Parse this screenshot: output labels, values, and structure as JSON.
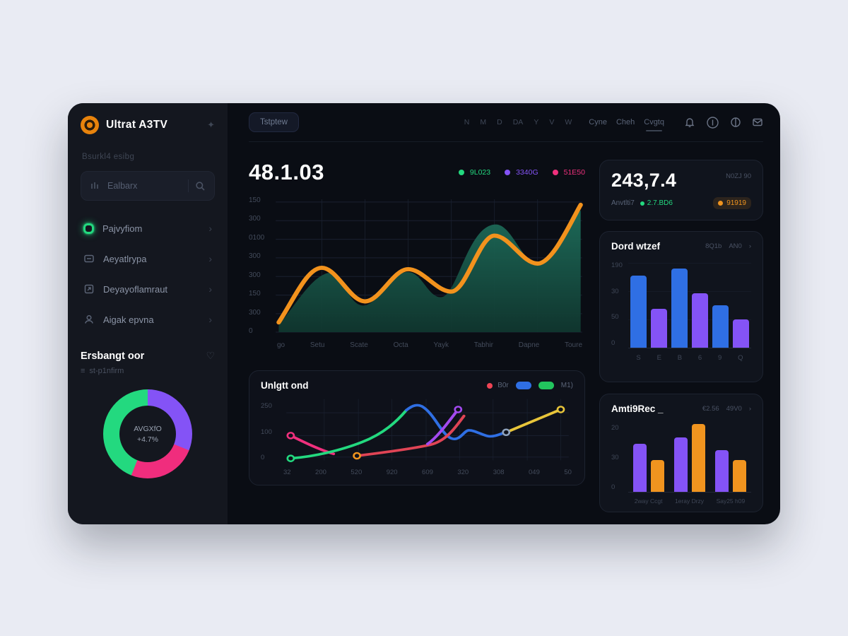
{
  "icons": {
    "chevron_right": "›",
    "sparkle": "✦",
    "heart": "♡",
    "menu_glyph": "≡"
  },
  "sidebar": {
    "logo_text": "Ultrat A3TV",
    "section_label": "Bsurkl4 esibg",
    "search": {
      "placeholder": "Ealbarx"
    },
    "menu": [
      {
        "label": "Pajvyfiom"
      },
      {
        "label": "Aeyatlrypa"
      },
      {
        "label": "Deyayoflamraut"
      },
      {
        "label": "Aigak epvna"
      }
    ],
    "panel": {
      "title": "Ersbangt oor",
      "subtitle": "st-p1nfirm",
      "center_label": "AVGXfO",
      "center_value": "+4.7%",
      "donut_segments": [
        {
          "color": "#8453f6",
          "pct": 31
        },
        {
          "color": "#f02d7d",
          "pct": 25
        },
        {
          "color": "#23d97f",
          "pct": 44
        }
      ]
    }
  },
  "topnav": {
    "pill_label": "Tstptew",
    "range_items": [
      "N",
      "M",
      "D",
      "DA",
      "Y",
      "V",
      "W"
    ],
    "links": [
      "Cyne",
      "Cheh",
      "Cvgtq"
    ],
    "active_link_index": 2
  },
  "overview": {
    "kpi": "48.1.03",
    "legend": [
      {
        "label": "9L023",
        "color": "#23d97f"
      },
      {
        "label": "3340G",
        "color": "#8453f6"
      },
      {
        "label": "51E50",
        "color": "#f0307d"
      }
    ]
  },
  "main_chart": {
    "y_ticks": [
      "150",
      "300",
      "0100",
      "300",
      "300",
      "150",
      "300",
      "0"
    ],
    "x_ticks": [
      "go",
      "Setu",
      "Scate",
      "Octa",
      "Yayk",
      "Tabhir",
      "Dapne",
      "Toure"
    ]
  },
  "bottom_chart": {
    "title": "Unlgtt ond",
    "y_ticks": [
      "250",
      "100",
      "0"
    ],
    "x_ticks": [
      "32",
      "200",
      "520",
      "920",
      "609",
      "320",
      "308",
      "049",
      "50"
    ],
    "legend_dot_label": "B0r",
    "legend_dot_color": "#ef4455",
    "pill_blue": "#2f6fe4",
    "pill_green": "#22c55e",
    "legend_right_label": "M1)"
  },
  "stat_card": {
    "value": "243,7.4",
    "note": "N0ZJ 90",
    "label": "Anvtlti7",
    "delta": "2.7.BD6",
    "delta_color": "#23d97f",
    "badge": "91919",
    "badge_color": "#f0941f"
  },
  "bars_card": {
    "title": "Dord wtzef",
    "controls": [
      "8Q1b",
      "AN0"
    ],
    "y_ticks": [
      "190",
      "30",
      "50",
      "0"
    ],
    "x_ticks": [
      "S",
      "E",
      "B",
      "6",
      "9",
      "Q"
    ],
    "bars": [
      {
        "v": 84,
        "color": "#2f6fe4"
      },
      {
        "v": 45,
        "color": "#8453f6"
      },
      {
        "v": 92,
        "color": "#2f6fe4"
      },
      {
        "v": 63,
        "color": "#8453f6"
      },
      {
        "v": 49,
        "color": "#2f6fe4"
      },
      {
        "v": 33,
        "color": "#8453f6"
      }
    ]
  },
  "grouped_card": {
    "title": "Amti9Rec _",
    "controls": [
      "€2.56",
      "49V0"
    ],
    "y_ticks": [
      "20",
      "30",
      "0"
    ],
    "x_labels": [
      "2way Ccgt",
      "1eray Drzy",
      "Say25 h09"
    ],
    "groups": [
      {
        "bars": [
          {
            "v": 71,
            "color": "#8453f6"
          },
          {
            "v": 47,
            "color": "#f0941f"
          }
        ]
      },
      {
        "bars": [
          {
            "v": 80,
            "color": "#8453f6"
          },
          {
            "v": 100,
            "color": "#f0941f"
          }
        ]
      },
      {
        "bars": [
          {
            "v": 61,
            "color": "#8453f6"
          },
          {
            "v": 47,
            "color": "#f0941f"
          }
        ]
      }
    ]
  },
  "chart_data": [
    {
      "type": "area",
      "title": "Overview 48.1.03",
      "x": [
        "go",
        "Setu",
        "Scate",
        "Octa",
        "Yayk",
        "Tabhir",
        "Dapne",
        "Toure"
      ],
      "y_tick_labels": [
        "150",
        "300",
        "0100",
        "300",
        "300",
        "150",
        "300",
        "0"
      ],
      "line_series": {
        "name": "orange-line",
        "color": "#f0941f",
        "values_est": [
          40,
          260,
          130,
          255,
          170,
          390,
          280,
          510
        ]
      },
      "area_series": {
        "name": "teal-area",
        "color": "#1b5f50",
        "values_est": [
          30,
          240,
          110,
          245,
          150,
          430,
          270,
          490
        ]
      },
      "grid": true,
      "legend_position": "top-right"
    },
    {
      "type": "line",
      "title": "Unlgtt ond",
      "x": [
        "32",
        "200",
        "520",
        "920",
        "609",
        "320",
        "308",
        "049",
        "50"
      ],
      "ylim": [
        0,
        250
      ],
      "grid": true,
      "series": [
        {
          "name": "pink",
          "color": "#f0307d",
          "points": [
            [
              0,
              100
            ],
            [
              1.3,
              25
            ]
          ]
        },
        {
          "name": "green",
          "color": "#23d97f",
          "points": [
            [
              0,
              5
            ],
            [
              1,
              15
            ],
            [
              2,
              45
            ],
            [
              3.4,
              215
            ]
          ]
        },
        {
          "name": "blue",
          "color": "#2f6fe4",
          "points": [
            [
              3.4,
              215
            ],
            [
              3.8,
              235
            ],
            [
              4.8,
              90
            ],
            [
              5.3,
              125
            ],
            [
              6,
              100
            ],
            [
              6.4,
              115
            ]
          ]
        },
        {
          "name": "red",
          "color": "#e04455",
          "points": [
            [
              2,
              12
            ],
            [
              4.3,
              60
            ],
            [
              5.1,
              190
            ]
          ]
        },
        {
          "name": "purple",
          "color": "#a34af0",
          "points": [
            [
              4.2,
              65
            ],
            [
              5,
              220
            ]
          ]
        },
        {
          "name": "yellow",
          "color": "#e8c53a",
          "points": [
            [
              6.4,
              115
            ],
            [
              8,
              220
            ]
          ]
        }
      ]
    },
    {
      "type": "bar",
      "title": "Dord wtzef",
      "categories": [
        "S",
        "E",
        "B",
        "6",
        "9",
        "Q"
      ],
      "values": [
        160,
        85,
        175,
        120,
        93,
        63
      ],
      "colors": [
        "#2f6fe4",
        "#8453f6",
        "#2f6fe4",
        "#8453f6",
        "#2f6fe4",
        "#8453f6"
      ],
      "ylim": [
        0,
        190
      ]
    },
    {
      "type": "bar",
      "title": "Amti9Rec",
      "categories": [
        "2way Ccgt",
        "1eray Drzy",
        "Say25 h09"
      ],
      "series": [
        {
          "name": "purple",
          "values": [
            15,
            17,
            13
          ]
        },
        {
          "name": "orange",
          "values": [
            10,
            21,
            10
          ]
        }
      ],
      "ylim": [
        0,
        21
      ]
    },
    {
      "type": "pie",
      "title": "Ersbangt oor donut",
      "slices": [
        {
          "label": "purple",
          "pct": 31,
          "color": "#8453f6"
        },
        {
          "label": "pink",
          "pct": 25,
          "color": "#f02d7d"
        },
        {
          "label": "green",
          "pct": 44,
          "color": "#23d97f"
        }
      ],
      "center_label": "AVGXfO",
      "center_value": "+4.7%"
    }
  ]
}
